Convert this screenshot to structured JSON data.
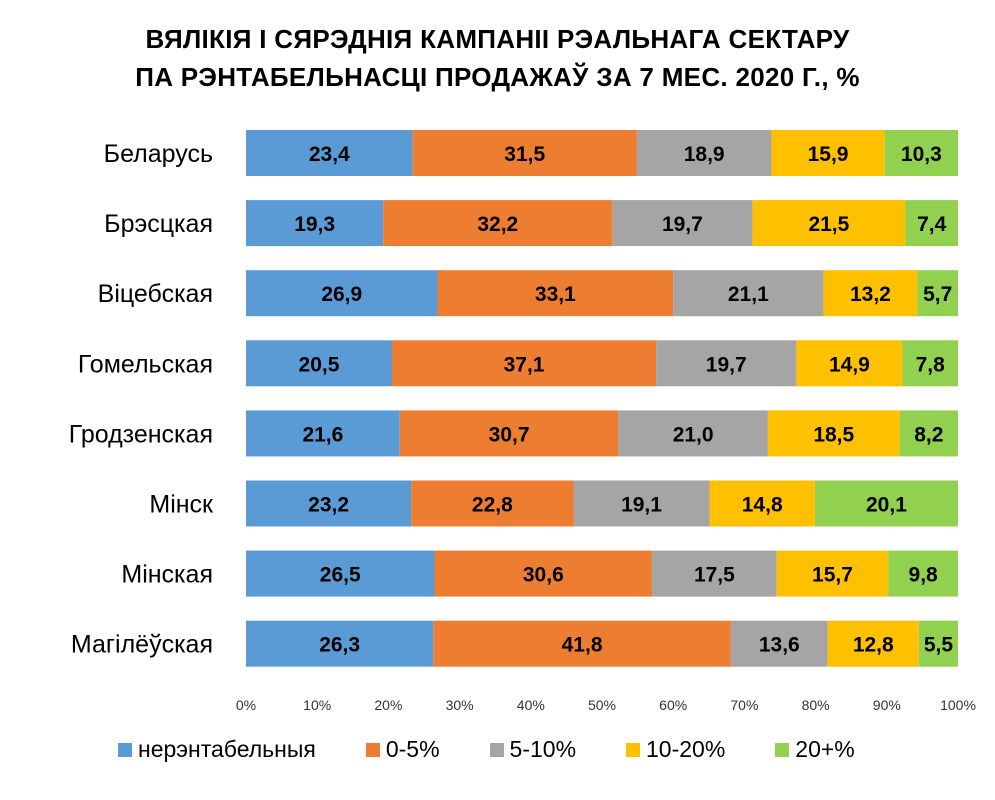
{
  "chart_data": {
    "type": "bar",
    "orientation": "horizontal",
    "stacked": "100%",
    "title": [
      "ВЯЛІКІЯ І СЯРЭДНІЯ КАМПАНІІ РЭАЛЬНАГА СЕКТАРУ",
      "ПА РЭНТАБЕЛЬНАСЦІ ПРОДАЖАЎ ЗА 7 МЕС. 2020 Г., %"
    ],
    "categories": [
      "Беларусь",
      "Брэсцкая",
      "Віцебская",
      "Гомельская",
      "Гродзенская",
      "Мінск",
      "Мінская",
      "Магілёўская"
    ],
    "series": [
      {
        "name": "нерэнтабельныя",
        "color": "#5b9bd5",
        "values": [
          23.4,
          19.3,
          26.9,
          20.5,
          21.6,
          23.2,
          26.5,
          26.3
        ],
        "labels": [
          "23,4",
          "19,3",
          "26,9",
          "20,5",
          "21,6",
          "23,2",
          "26,5",
          "26,3"
        ]
      },
      {
        "name": "0-5%",
        "color": "#ed7d31",
        "values": [
          31.5,
          32.2,
          33.1,
          37.1,
          30.7,
          22.8,
          30.6,
          41.8
        ],
        "labels": [
          "31,5",
          "32,2",
          "33,1",
          "37,1",
          "30,7",
          "22,8",
          "30,6",
          "41,8"
        ]
      },
      {
        "name": "5-10%",
        "color": "#a5a5a5",
        "values": [
          18.9,
          19.7,
          21.1,
          19.7,
          21.0,
          19.1,
          17.5,
          13.6
        ],
        "labels": [
          "18,9",
          "19,7",
          "21,1",
          "19,7",
          "21,0",
          "19,1",
          "17,5",
          "13,6"
        ]
      },
      {
        "name": "10-20%",
        "color": "#ffc000",
        "values": [
          15.9,
          21.5,
          13.2,
          14.9,
          18.5,
          14.8,
          15.7,
          12.8
        ],
        "labels": [
          "15,9",
          "21,5",
          "13,2",
          "14,9",
          "18,5",
          "14,8",
          "15,7",
          "12,8"
        ]
      },
      {
        "name": "20+%",
        "color": "#92d050",
        "values": [
          10.3,
          7.4,
          5.7,
          7.8,
          8.2,
          20.1,
          9.8,
          5.5
        ],
        "labels": [
          "10,3",
          "7,4",
          "5,7",
          "7,8",
          "8,2",
          "20,1",
          "9,8",
          "5,5"
        ]
      }
    ],
    "x_ticks": [
      "0%",
      "10%",
      "20%",
      "30%",
      "40%",
      "50%",
      "60%",
      "70%",
      "80%",
      "90%",
      "100%"
    ],
    "xlim": [
      0,
      100
    ],
    "grid": false,
    "legend": "bottom"
  }
}
